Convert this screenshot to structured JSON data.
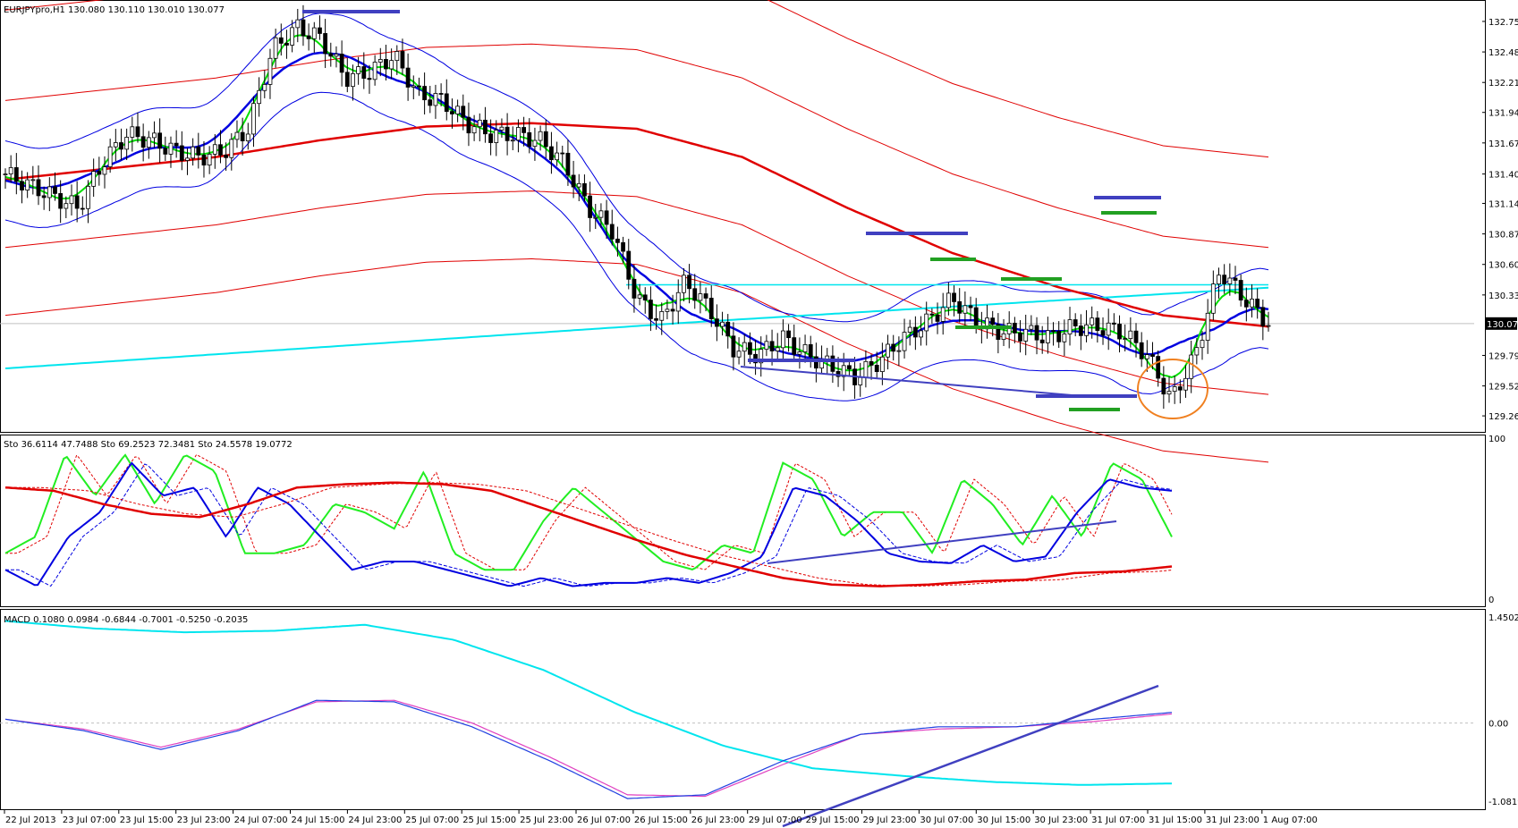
{
  "chart_data": [
    {
      "type": "candlestick",
      "title": "EURJPYpro,H1  130.080 130.110 130.010 130.077",
      "ylim": [
        129.15,
        132.9
      ],
      "y_ticks": [
        "132.750",
        "132.480",
        "132.210",
        "131.945",
        "131.675",
        "131.400",
        "131.140",
        "130.870",
        "130.600",
        "130.330",
        "130.077",
        "129.795",
        "129.525",
        "129.260"
      ],
      "last_price": "130.077",
      "colors": {
        "ma_fast": "#00e000",
        "ma_mid": "#0000e0",
        "ma_slow": "#e00000",
        "ma_long": "#00e5ee",
        "bands_blue": "#0000e0",
        "bands_red": "#e00000",
        "marker_blue": "#4040c0",
        "marker_green": "#22a022",
        "circle": "#f08020"
      },
      "price_path": [
        131.4,
        131.3,
        131.2,
        131.1,
        131.5,
        131.75,
        131.7,
        131.6,
        131.55,
        131.6,
        131.8,
        132.5,
        132.7,
        132.6,
        132.25,
        132.3,
        132.45,
        132.1,
        132.05,
        131.85,
        131.75,
        131.75,
        131.7,
        131.5,
        131.1,
        130.9,
        130.3,
        130.1,
        130.45,
        130.2,
        129.85,
        129.8,
        129.95,
        129.8,
        129.7,
        129.6,
        129.75,
        129.95,
        130.1,
        130.3,
        130.1,
        130.0,
        130.0,
        129.95,
        130.05,
        130.05,
        130.0,
        129.8,
        129.4,
        129.8,
        130.55,
        130.3,
        130.08
      ]
    },
    {
      "type": "line",
      "title": "Sto 36.6114 47.7488   Sto 69.2523 72.3481   Sto 24.5578 19.0772",
      "ylim": [
        0,
        100
      ],
      "y_ticks": [
        "100",
        "0"
      ],
      "series": [
        {
          "values": [
            30,
            40,
            90,
            65,
            90,
            60,
            90,
            80,
            30,
            30,
            35,
            60,
            55,
            45,
            80,
            30,
            20,
            20,
            50,
            70,
            55,
            40,
            25,
            20,
            35,
            30,
            85,
            75,
            40,
            55,
            55,
            30,
            75,
            60,
            35,
            65,
            40,
            85,
            75,
            40
          ]
        },
        {
          "values": [
            20,
            10,
            40,
            55,
            85,
            65,
            70,
            40,
            70,
            60,
            40,
            20,
            25,
            25,
            20,
            15,
            10,
            15,
            10,
            12,
            12,
            15,
            12,
            18,
            28,
            70,
            65,
            50,
            30,
            25,
            24,
            35,
            25,
            28,
            55,
            75,
            70,
            68
          ]
        },
        {
          "values": [
            70,
            68,
            60,
            54,
            52,
            60,
            70,
            72,
            73,
            72,
            68,
            58,
            48,
            38,
            29,
            22,
            15,
            11,
            10,
            11,
            13,
            14,
            18,
            19,
            22
          ]
        }
      ]
    },
    {
      "type": "line",
      "title": "MACD 0.1080 0.0984 -0.6844 -0.7001 -0.5250 -0.2035",
      "ylim": [
        -1.0819,
        1.4502
      ],
      "y_ticks": [
        "1.4502",
        "0.00",
        "-1.0819"
      ],
      "series": [
        {
          "values": [
            1.35,
            1.25,
            1.2,
            1.22,
            1.3,
            1.1,
            0.7,
            0.15,
            -0.3,
            -0.6,
            -0.7,
            -0.78,
            -0.82,
            -0.8
          ]
        },
        {
          "values": [
            0.05,
            -0.1,
            -0.35,
            -0.1,
            0.3,
            0.28,
            -0.05,
            -0.5,
            -1.0,
            -0.95,
            -0.5,
            -0.15,
            -0.05,
            -0.05,
            0.05,
            0.14
          ]
        },
        {
          "values": [
            0.05,
            -0.08,
            -0.32,
            -0.08,
            0.28,
            0.3,
            0.0,
            -0.45,
            -0.95,
            -0.97,
            -0.55,
            -0.15,
            -0.08,
            -0.05,
            0.02,
            0.12
          ]
        }
      ]
    }
  ],
  "x_ticks": [
    "22 Jul 2013",
    "23 Jul 07:00",
    "23 Jul 15:00",
    "23 Jul 23:00",
    "24 Jul 07:00",
    "24 Jul 15:00",
    "24 Jul 23:00",
    "25 Jul 07:00",
    "25 Jul 15:00",
    "25 Jul 23:00",
    "26 Jul 07:00",
    "26 Jul 15:00",
    "26 Jul 23:00",
    "29 Jul 07:00",
    "29 Jul 15:00",
    "29 Jul 23:00",
    "30 Jul 07:00",
    "30 Jul 15:00",
    "30 Jul 23:00",
    "31 Jul 07:00",
    "31 Jul 15:00",
    "31 Jul 23:00",
    "1 Aug 07:00"
  ]
}
